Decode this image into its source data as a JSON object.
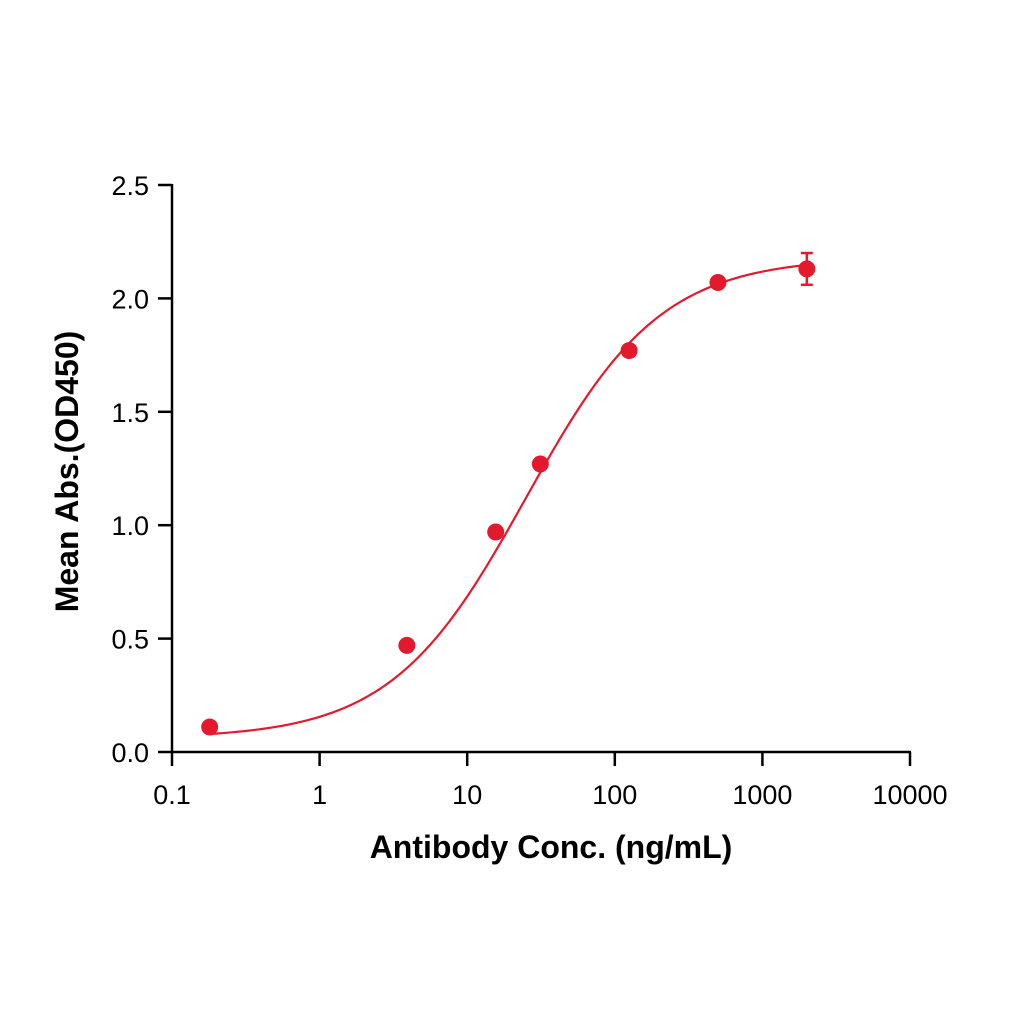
{
  "chart_data": {
    "type": "scatter",
    "title": "",
    "xlabel": "Antibody Conc. (ng/mL)",
    "ylabel": "Mean Abs.(OD450)",
    "x_scale": "log",
    "xlim": [
      0.1,
      10000
    ],
    "ylim": [
      0.0,
      2.5
    ],
    "x_ticks": [
      0.1,
      1,
      10,
      100,
      1000,
      10000
    ],
    "x_tick_labels": [
      "0.1",
      "1",
      "10",
      "100",
      "1000",
      "10000"
    ],
    "y_ticks": [
      0.0,
      0.5,
      1.0,
      1.5,
      2.0,
      2.5
    ],
    "y_tick_labels": [
      "0.0",
      "0.5",
      "1.0",
      "1.5",
      "2.0",
      "2.5"
    ],
    "grid": false,
    "legend": "none",
    "series": [
      {
        "color": "#e31a2e",
        "points": [
          {
            "x": 0.18,
            "y": 0.11
          },
          {
            "x": 3.9,
            "y": 0.47
          },
          {
            "x": 15.6,
            "y": 0.97
          },
          {
            "x": 31.3,
            "y": 1.27
          },
          {
            "x": 125,
            "y": 1.77
          },
          {
            "x": 500,
            "y": 2.07
          },
          {
            "x": 2000,
            "y": 2.13,
            "err": 0.07
          }
        ],
        "fit": {
          "model": "4PL",
          "bottom": 0.06,
          "top": 2.18,
          "ec50": 25,
          "hill": 0.95
        }
      }
    ]
  }
}
